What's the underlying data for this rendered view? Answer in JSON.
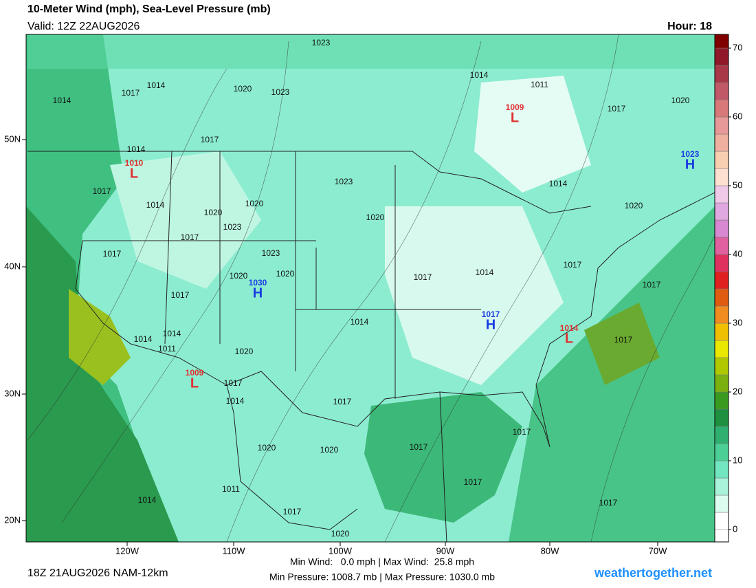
{
  "header": {
    "title": "10-Meter Wind (mph), Sea-Level Pressure (mb)",
    "valid": "Valid: 12Z 22AUG2026",
    "hour": "Hour: 18"
  },
  "map": {
    "lat_labels": [
      "50N",
      "40N",
      "30N",
      "20N"
    ],
    "lon_labels": [
      "120W",
      "110W",
      "100W",
      "90W",
      "80W",
      "70W"
    ],
    "isobar_labels": [
      "1014",
      "1017",
      "1014",
      "1020",
      "1023",
      "1023",
      "1014",
      "1011",
      "1017",
      "1020",
      "1017",
      "1014",
      "1017",
      "1014",
      "1020",
      "1020",
      "1023",
      "1023",
      "1020",
      "1014",
      "1020",
      "1017",
      "1017",
      "1023",
      "1020",
      "1020",
      "1017",
      "1014",
      "1017",
      "1017",
      "1017",
      "1014",
      "1014",
      "1014",
      "1011",
      "1020",
      "1017",
      "1017",
      "1014",
      "1017",
      "1020",
      "1020",
      "1017",
      "1017",
      "1017",
      "1011",
      "1014",
      "1017",
      "1020",
      "1017"
    ],
    "centers": [
      {
        "symbol": "L",
        "value": "1010"
      },
      {
        "symbol": "H",
        "value": "1030"
      },
      {
        "symbol": "L",
        "value": "1009"
      },
      {
        "symbol": "H",
        "value": "1023"
      },
      {
        "symbol": "H",
        "value": "1017"
      },
      {
        "symbol": "L",
        "value": "1014"
      },
      {
        "symbol": "L",
        "value": "1009"
      }
    ]
  },
  "colorbar": {
    "lim": [
      -1.8,
      72
    ],
    "ticks": [
      0,
      10,
      20,
      30,
      40,
      50,
      60,
      70
    ],
    "bins": [
      0,
      2.5,
      5,
      7.5,
      10,
      12.5,
      15,
      17.5,
      20,
      22.5,
      25,
      27.5,
      30,
      32.5,
      35,
      37.5,
      40,
      42.5,
      45,
      47.5,
      50,
      52.5,
      55,
      57.5,
      60,
      62.5,
      65,
      67.5,
      70,
      72.5
    ],
    "colors": [
      "#ffffff",
      "#dcfcef",
      "#a8f3da",
      "#72e6c0",
      "#4ccf96",
      "#2fb070",
      "#1e9040",
      "#3a9a20",
      "#7ab010",
      "#b0c800",
      "#e8e800",
      "#f0c000",
      "#f08c20",
      "#e05a10",
      "#e02020",
      "#e03060",
      "#e060a0",
      "#d888d0",
      "#e0a8e0",
      "#f0c8e8",
      "#fde0d0",
      "#f8d0b0",
      "#f0b0a0",
      "#e89898",
      "#d87878",
      "#c05868",
      "#a83848",
      "#901828",
      "#800000"
    ]
  },
  "footer": {
    "run": "18Z 21AUG2026 NAM-12km",
    "wind": "Min Wind:   0.0 mph | Max Wind:  25.8 mph",
    "pressure": "Min Pressure: 1008.7 mb | Max Pressure: 1030.0 mb",
    "site": "weathertogether.net"
  }
}
